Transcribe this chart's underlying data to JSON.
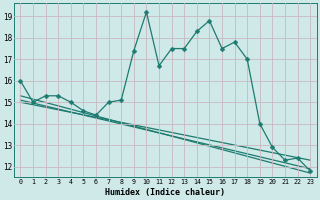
{
  "xlabel": "Humidex (Indice chaleur)",
  "bg_color": "#cfe8e8",
  "grid_color": "#c8b8c0",
  "line_color": "#1e7b70",
  "xlim": [
    -0.5,
    23.5
  ],
  "ylim": [
    11.5,
    19.6
  ],
  "yticks": [
    12,
    13,
    14,
    15,
    16,
    17,
    18,
    19
  ],
  "xticks": [
    0,
    1,
    2,
    3,
    4,
    5,
    6,
    7,
    8,
    9,
    10,
    11,
    12,
    13,
    14,
    15,
    16,
    17,
    18,
    19,
    20,
    21,
    22,
    23
  ],
  "main_x": [
    0,
    1,
    2,
    3,
    4,
    5,
    6,
    7,
    8,
    9,
    10,
    11,
    12,
    13,
    14,
    15,
    16,
    17,
    18,
    19,
    20,
    21,
    22,
    23
  ],
  "main_y": [
    16.0,
    15.0,
    15.3,
    15.3,
    15.0,
    14.6,
    14.4,
    15.0,
    15.1,
    17.4,
    19.2,
    16.7,
    17.5,
    17.5,
    18.3,
    18.8,
    17.5,
    17.8,
    17.0,
    14.0,
    12.9,
    12.3,
    12.4,
    11.8
  ],
  "trend1_x": [
    0,
    23
  ],
  "trend1_y": [
    15.0,
    12.3
  ],
  "trend2_x": [
    0,
    23
  ],
  "trend2_y": [
    15.1,
    11.9
  ],
  "trend3_x": [
    0,
    23
  ],
  "trend3_y": [
    15.3,
    11.7
  ]
}
